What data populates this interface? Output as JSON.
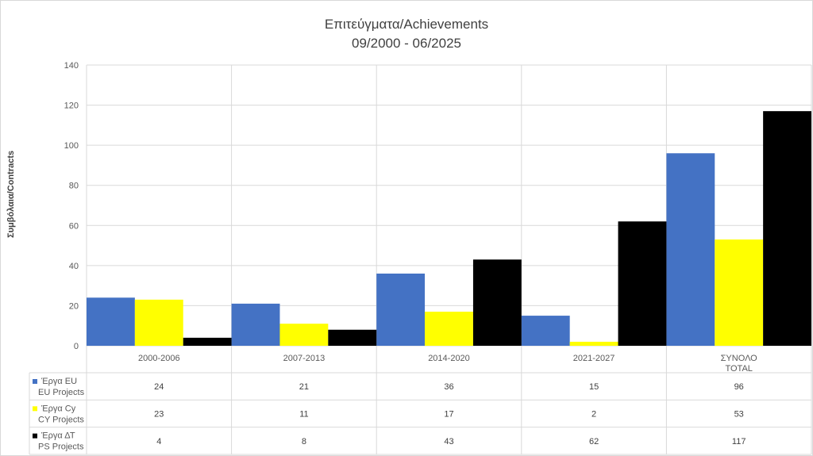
{
  "chart_data": {
    "type": "bar",
    "title": "Επιτεύγματα/Achievements",
    "subtitle": "09/2000 - 06/2025",
    "ylabel": "Συμβόλαια/Contracts",
    "xlabel": "",
    "ylim": [
      0,
      140
    ],
    "yticks": [
      0,
      20,
      40,
      60,
      80,
      100,
      120,
      140
    ],
    "grid": true,
    "legend": "data-table",
    "categories": [
      [
        "2000-2006"
      ],
      [
        "2007-2013"
      ],
      [
        "2014-2020"
      ],
      [
        "2021-2027"
      ],
      [
        "ΣΥΝΟΛΟ",
        "TOTAL"
      ]
    ],
    "series": [
      {
        "name": [
          "Έργα EU",
          "EU Projects"
        ],
        "color": "#4472c4",
        "values": [
          24,
          21,
          36,
          15,
          96
        ]
      },
      {
        "name": [
          "Έργα Cy",
          "CY Projects"
        ],
        "color": "#ffff00",
        "values": [
          23,
          11,
          17,
          2,
          53
        ]
      },
      {
        "name": [
          "Έργα ΔΤ",
          "PS Projects"
        ],
        "color": "#000000",
        "values": [
          4,
          8,
          43,
          62,
          117
        ]
      }
    ]
  }
}
